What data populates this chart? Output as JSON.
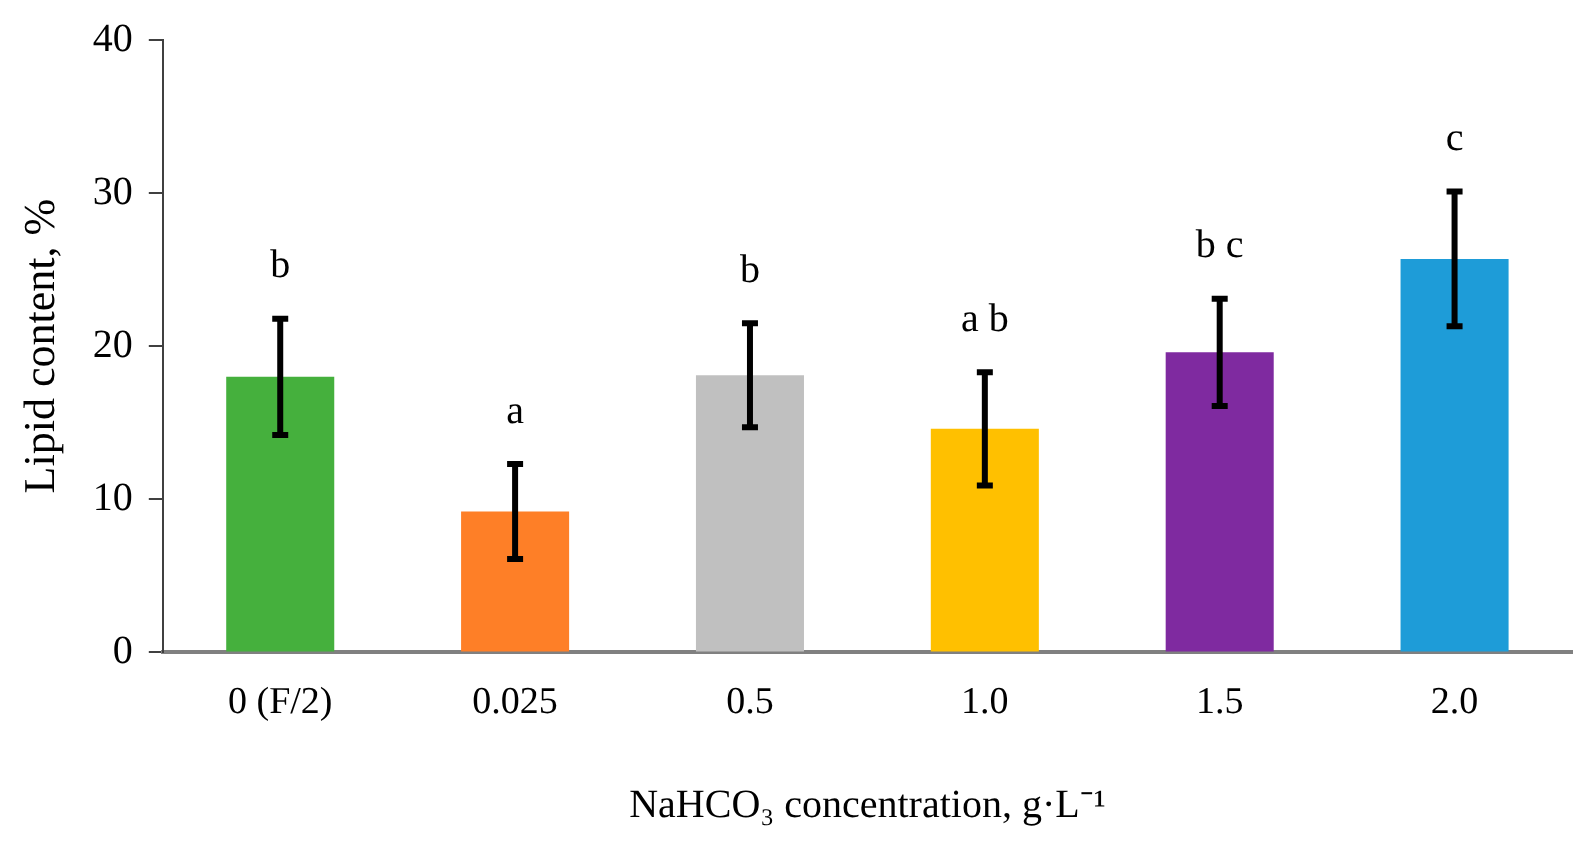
{
  "chart_data": {
    "type": "bar",
    "xlabel": "NaHCO₃ concentration, g·L⁻¹",
    "ylabel": "Lipid content, %",
    "categories": [
      "0 (F/2)",
      "0.025",
      "0.5",
      "1.0",
      "1.5",
      "2.0"
    ],
    "values": [
      18.0,
      9.2,
      18.1,
      14.6,
      19.6,
      25.7
    ],
    "colors": [
      "#45b03d",
      "#fe7f27",
      "#c0c0c0",
      "#ffc000",
      "#7f2aa0",
      "#1e9cd8"
    ],
    "errors": [
      3.8,
      3.1,
      3.4,
      3.7,
      3.5,
      4.4
    ],
    "ylim": [
      0,
      40
    ],
    "yticks": [
      0,
      10,
      20,
      30,
      40
    ],
    "grid": false,
    "legend": false,
    "annotations": [
      "b",
      "a",
      "b",
      "a b",
      "b c",
      "c"
    ]
  }
}
